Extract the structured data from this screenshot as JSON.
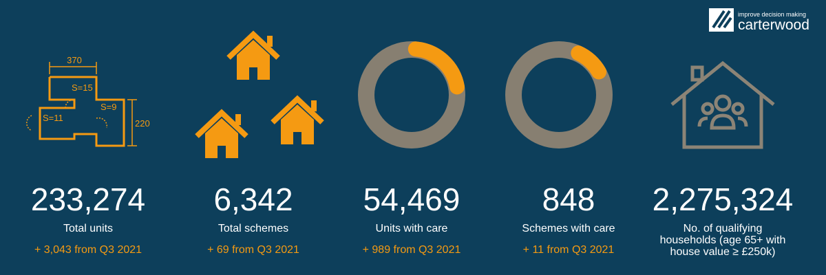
{
  "logo": {
    "tagline": "improve decision making",
    "name": "carterwood"
  },
  "floorplan": {
    "width": "370",
    "height": "220",
    "rooms": [
      "S=15",
      "S=9",
      "S=11"
    ]
  },
  "stats": [
    {
      "value": "233,274",
      "label": "Total units",
      "change": "+ 3,043 from Q3 2021"
    },
    {
      "value": "6,342",
      "label": "Total schemes",
      "change": "+ 69 from Q3 2021"
    },
    {
      "value": "54,469",
      "label": "Units with care",
      "change": "+ 989 from Q3 2021"
    },
    {
      "value": "848",
      "label": "Schemes with care",
      "change": "+ 11 from Q3 2021"
    },
    {
      "value": "2,275,324",
      "label": "No. of qualifying households (age 65+ with house value ≥ £250k)"
    }
  ]
}
